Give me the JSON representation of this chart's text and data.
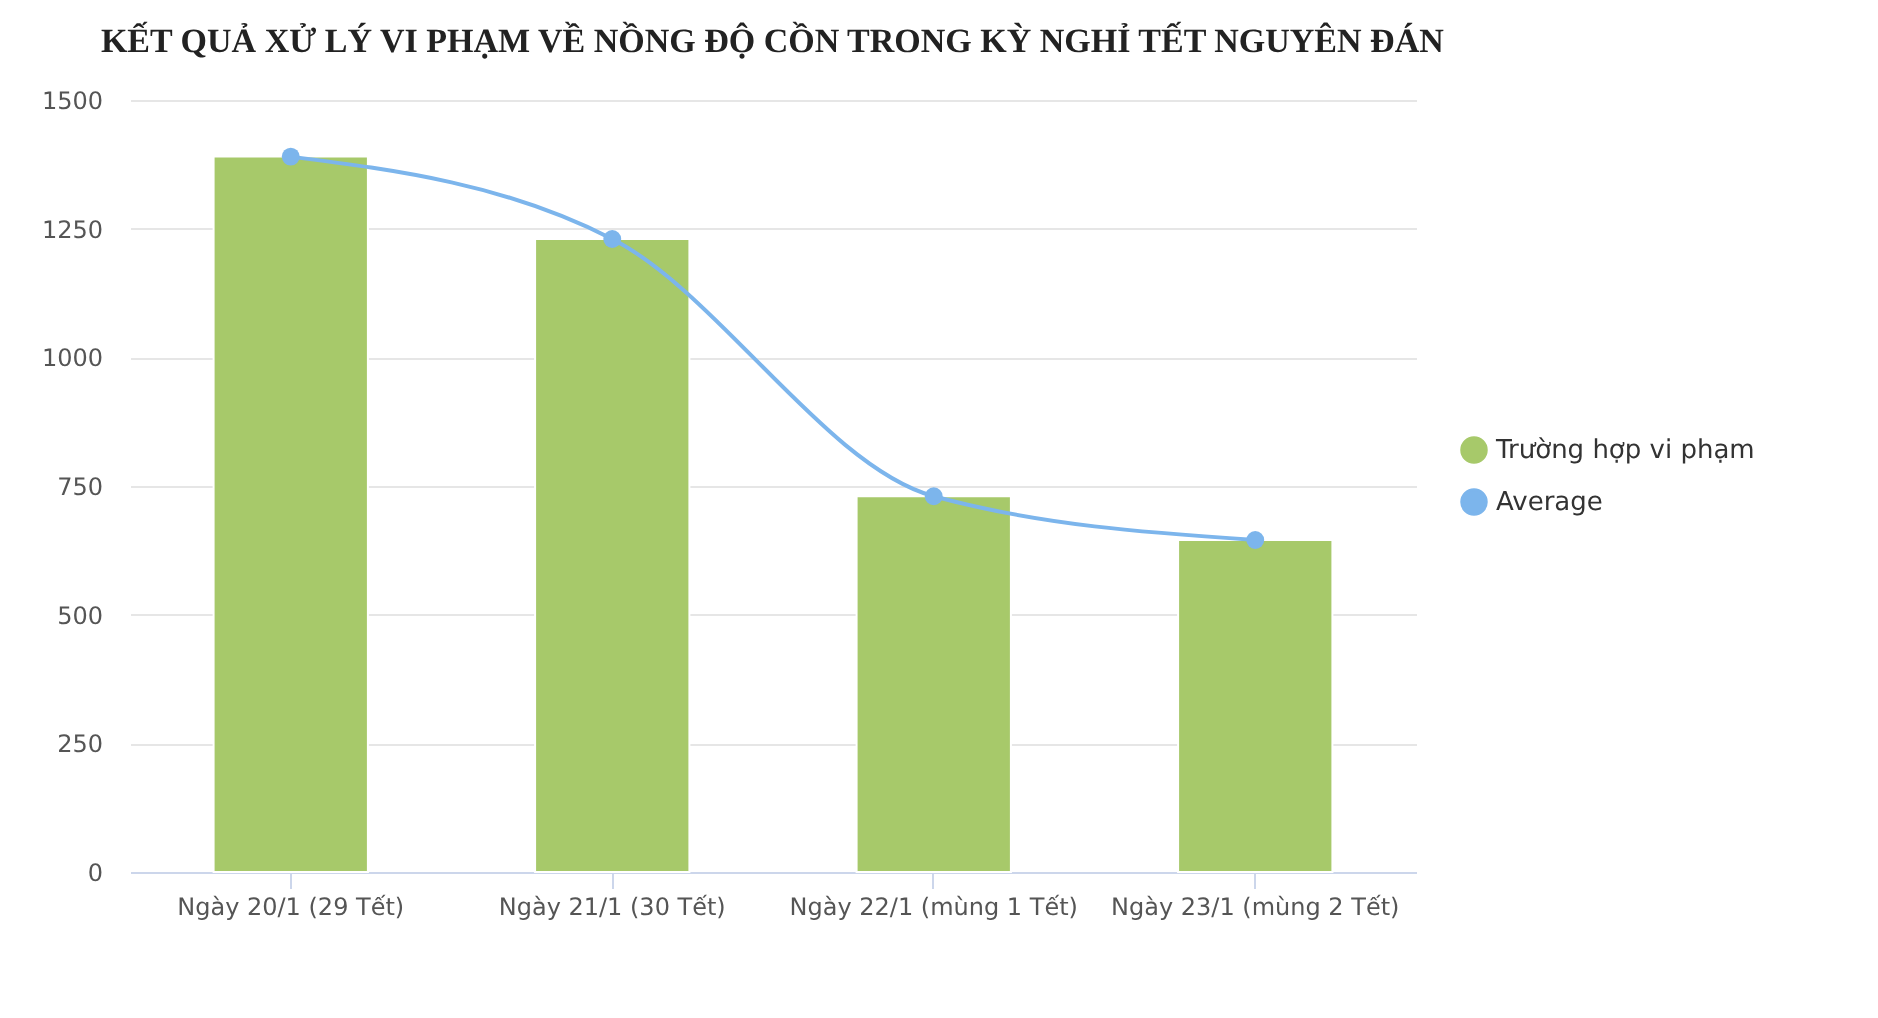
{
  "chart_data": {
    "type": "bar",
    "title": "KẾT QUẢ XỬ LÝ VI PHẠM VỀ NỒNG ĐỘ CỒN TRONG KỲ NGHỈ TẾT NGUYÊN ĐÁN",
    "categories": [
      "Ngày 20/1 (29 Tết)",
      "Ngày 21/1 (30 Tết)",
      "Ngày 22/1 (mùng 1 Tết)",
      "Ngày 23/1 (mùng 2 Tết)"
    ],
    "series": [
      {
        "name": "Trường hợp vi phạm",
        "color": "#a7c96a",
        "values": [
          1390,
          1230,
          730,
          645
        ]
      },
      {
        "name": "Average",
        "type": "line",
        "color": "#7cb5ec",
        "marker": "circle",
        "values": [
          1390,
          1230,
          730,
          645
        ]
      }
    ],
    "ylim": [
      0,
      1500
    ],
    "yticks": [
      0,
      250,
      500,
      750,
      {
        "value": 1000,
        "label": "1000"
      },
      {
        "value": 1250,
        "label": "1250"
      },
      {
        "value": 1500,
        "label": "1500"
      }
    ],
    "grid": "y",
    "legend": "right"
  }
}
